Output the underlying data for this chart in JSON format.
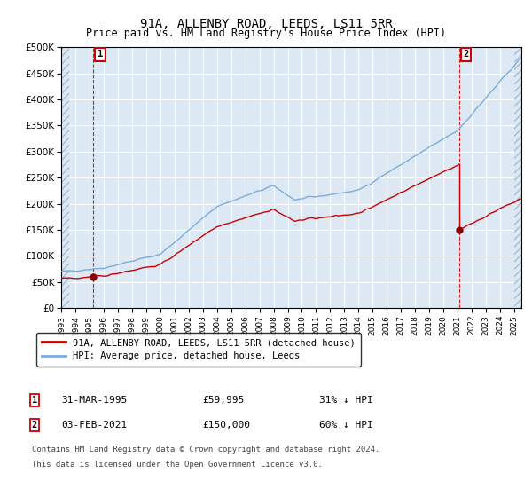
{
  "title": "91A, ALLENBY ROAD, LEEDS, LS11 5RR",
  "subtitle": "Price paid vs. HM Land Registry's House Price Index (HPI)",
  "hpi_label": "HPI: Average price, detached house, Leeds",
  "price_label": "91A, ALLENBY ROAD, LEEDS, LS11 5RR (detached house)",
  "hpi_color": "#7aacdc",
  "price_color": "#cc0000",
  "marker_color": "#880000",
  "bg_color": "#dce9f5",
  "hatch_color": "#aabbcc",
  "grid_color": "#ffffff",
  "ann1": {
    "label": "1",
    "date": "31-MAR-1995",
    "price": "£59,995",
    "note": "31% ↓ HPI",
    "x_year": 1995.25,
    "y_val": 59995
  },
  "ann2": {
    "label": "2",
    "date": "03-FEB-2021",
    "price": "£150,000",
    "note": "60% ↓ HPI",
    "x_year": 2021.09,
    "y_val": 150000
  },
  "footer1": "Contains HM Land Registry data © Crown copyright and database right 2024.",
  "footer2": "This data is licensed under the Open Government Licence v3.0.",
  "ylim": [
    0,
    500000
  ],
  "yticks": [
    0,
    50000,
    100000,
    150000,
    200000,
    250000,
    300000,
    350000,
    400000,
    450000,
    500000
  ],
  "xlim_start": 1993.0,
  "xlim_end": 2025.5,
  "xticks": [
    1993,
    1994,
    1995,
    1996,
    1997,
    1998,
    1999,
    2000,
    2001,
    2002,
    2003,
    2004,
    2005,
    2006,
    2007,
    2008,
    2009,
    2010,
    2011,
    2012,
    2013,
    2014,
    2015,
    2016,
    2017,
    2018,
    2019,
    2020,
    2021,
    2022,
    2023,
    2024,
    2025
  ],
  "hatch_left_end": 1993.58,
  "hatch_right_start": 2025.0
}
